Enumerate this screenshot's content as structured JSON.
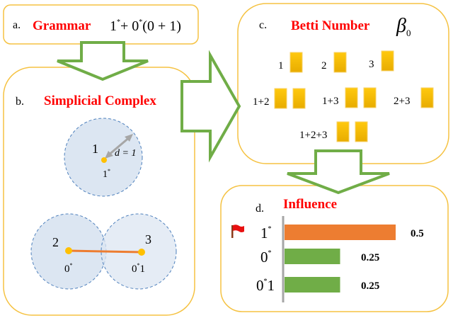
{
  "panel_a": {
    "letter": "a.",
    "title": "Grammar",
    "expr": [
      "1",
      "*",
      "+ 0",
      "*",
      "(0 + 1)"
    ]
  },
  "panel_b": {
    "letter": "b.",
    "title": "Simplicial Complex",
    "top": {
      "node": "1",
      "token": "1",
      "token_sup": "*",
      "distance": "d = 1"
    },
    "bottom": {
      "node_left": "2",
      "token_left": "0",
      "token_left_sup": "*",
      "node_right": "3",
      "token_right": "0",
      "token_right_sup": "*",
      "token_right_suffix": "1"
    }
  },
  "panel_c": {
    "letter": "c.",
    "title": "Betti Number",
    "symbol": "β",
    "symbol_sub": "0",
    "groups": [
      {
        "label": "1",
        "components": 1
      },
      {
        "label": "2",
        "components": 1
      },
      {
        "label": "3",
        "components": 1
      },
      {
        "label": "1+2",
        "components": 2
      },
      {
        "label": "1+3",
        "components": 2
      },
      {
        "label": "2+3",
        "components": 1
      },
      {
        "label": "1+2+3",
        "components": 2
      }
    ]
  },
  "panel_d": {
    "letter": "d.",
    "title": "Influence",
    "items": [
      {
        "base": "1",
        "sup": "*",
        "suffix": "",
        "value": 0.5,
        "value_label": "0.5",
        "color": "#ed7d31",
        "flagged": true
      },
      {
        "base": "0",
        "sup": "*",
        "suffix": "",
        "value": 0.25,
        "value_label": "0.25",
        "color": "#70ad47",
        "flagged": false
      },
      {
        "base": "0",
        "sup": "*",
        "suffix": "1",
        "value": 0.25,
        "value_label": "0.25",
        "color": "#70ad47",
        "flagged": false
      }
    ]
  },
  "colors": {
    "title": "#ff0000",
    "arrow": "#70ad47",
    "box_border": "#f5c242",
    "square": "#ffc000",
    "edge": "#ed7d31"
  }
}
